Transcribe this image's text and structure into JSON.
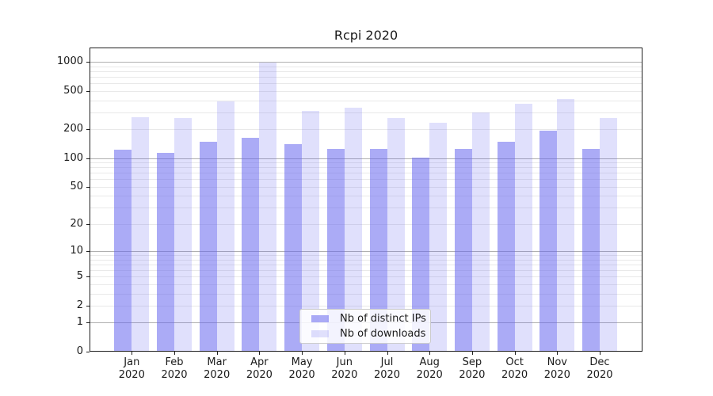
{
  "chart_data": {
    "type": "bar",
    "title": "Rcpi 2020",
    "categories": [
      "Jan 2020",
      "Feb 2020",
      "Mar 2020",
      "Apr 2020",
      "May 2020",
      "Jun 2020",
      "Jul 2020",
      "Aug 2020",
      "Sep 2020",
      "Oct 2020",
      "Nov 2020",
      "Dec 2020"
    ],
    "series": [
      {
        "name": "Nb of distinct IPs",
        "fill": "rgba(102,102,238,0.55)",
        "values": [
          122,
          113,
          148,
          163,
          139,
          124,
          124,
          101,
          126,
          147,
          194,
          124
        ]
      },
      {
        "name": "Nb of downloads",
        "fill": "rgba(102,102,238,0.20)",
        "values": [
          266,
          260,
          388,
          990,
          309,
          337,
          260,
          233,
          298,
          368,
          411,
          262
        ]
      }
    ],
    "yscale": "log1p",
    "ylim": [
      0,
      1412
    ],
    "yticks": [
      0,
      1,
      2,
      5,
      10,
      20,
      50,
      100,
      200,
      500,
      1000
    ],
    "major_gridlines": [
      1,
      10,
      100,
      1000
    ],
    "minor_gridlines": [
      2,
      3,
      4,
      5,
      6,
      7,
      8,
      9,
      20,
      30,
      40,
      50,
      60,
      70,
      80,
      90,
      200,
      300,
      400,
      500,
      600,
      700,
      800,
      900
    ],
    "grid": "on",
    "legend_position": "lower center inside plot",
    "xlabel": "",
    "ylabel": ""
  },
  "colors": {
    "bar_base": "#6666ee",
    "major_grid": "#b0b0b0",
    "minor_grid": "#e9e9e9",
    "spine": "#1f1f1f",
    "text": "#1a1a1a"
  }
}
